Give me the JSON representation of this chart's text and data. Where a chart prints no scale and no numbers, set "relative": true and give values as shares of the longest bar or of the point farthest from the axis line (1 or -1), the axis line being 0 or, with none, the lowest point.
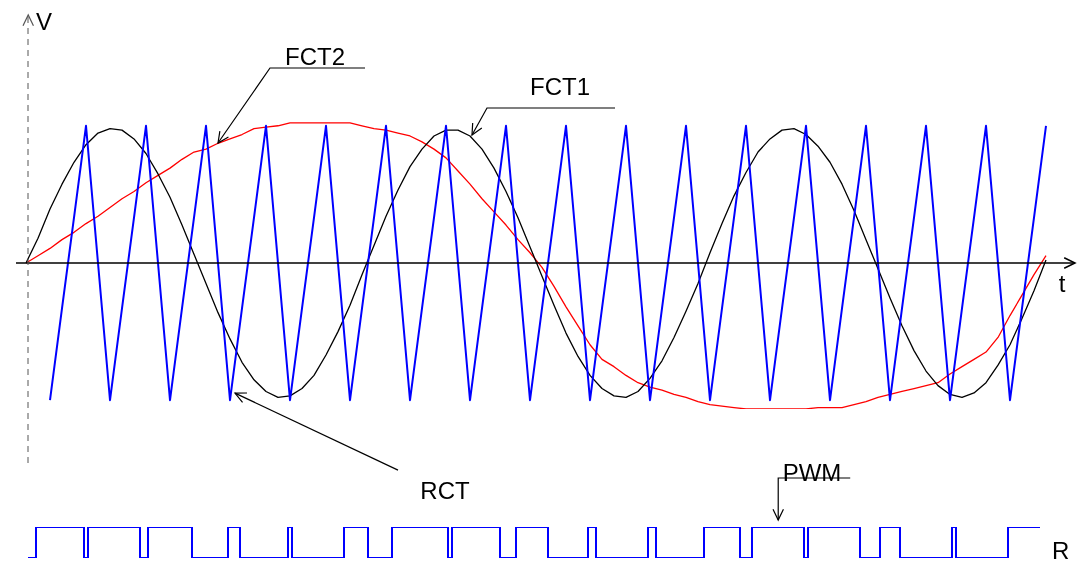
{
  "chart_data": [
    {
      "type": "line",
      "xlabel": "t",
      "ylabel": "V",
      "relative": true,
      "tick_labels": false,
      "legend": false,
      "marker": "none",
      "categories": [
        null,
        null,
        null,
        null,
        null,
        null,
        null,
        null,
        null,
        null,
        null,
        null,
        null,
        null,
        null,
        null,
        null,
        null,
        null,
        null,
        null,
        null,
        null,
        null,
        null,
        null,
        null,
        null,
        null,
        null,
        null,
        null,
        null,
        null,
        null,
        null,
        null,
        null,
        null,
        null,
        null,
        null,
        null,
        null,
        null,
        null,
        null,
        null,
        null,
        null,
        null,
        null,
        null,
        null,
        null,
        null,
        null,
        null,
        null,
        null,
        null,
        null,
        null,
        null,
        null,
        null,
        null,
        null,
        null,
        null,
        null,
        null,
        null,
        null,
        null,
        null,
        null,
        null,
        null,
        null,
        null,
        null,
        null,
        null,
        null,
        null,
        null,
        null
      ],
      "series": [
        {
          "name": "RCT",
          "color": "#0000ff",
          "values": [
            null,
            null,
            -0.94,
            -0.31,
            0.31,
            0.94,
            0,
            -0.94,
            -0.31,
            0.31,
            0.94,
            0,
            -0.94,
            -0.31,
            0.31,
            0.94,
            0,
            -0.94,
            -0.31,
            0.31,
            0.94,
            0,
            -0.94,
            -0.31,
            0.31,
            0.94,
            0,
            -0.94,
            -0.31,
            0.31,
            0.94,
            0,
            -0.94,
            -0.31,
            0.31,
            0.94,
            0,
            -0.94,
            -0.31,
            0.31,
            0.94,
            0,
            -0.94,
            -0.31,
            0.31,
            0.94,
            0,
            -0.94,
            -0.31,
            0.31,
            0.94,
            0,
            -0.94,
            -0.31,
            0.31,
            0.94,
            0,
            -0.94,
            -0.31,
            0.31,
            0.94,
            0,
            -0.94,
            -0.31,
            0.31,
            0.94,
            0,
            -0.94,
            -0.31,
            0.31,
            0.94,
            0,
            -0.94,
            -0.31,
            0.31,
            0.94,
            0,
            -0.94,
            -0.31,
            0.31,
            0.94,
            0,
            -0.94,
            -0.31,
            0.31,
            0.94,
            null,
            null
          ]
        },
        {
          "name": "FCT1",
          "color": "#000000",
          "values": [
            0,
            0.17,
            0.37,
            0.54,
            0.69,
            0.81,
            0.89,
            0.92,
            0.91,
            0.85,
            0.75,
            0.61,
            0.45,
            0.26,
            0.06,
            -0.14,
            -0.34,
            -0.52,
            -0.68,
            -0.8,
            -0.88,
            -0.92,
            -0.91,
            -0.86,
            -0.77,
            -0.63,
            -0.47,
            -0.29,
            -0.08,
            0.12,
            0.32,
            0.5,
            0.66,
            0.78,
            0.87,
            0.91,
            0.91,
            0.87,
            0.78,
            0.65,
            0.49,
            0.31,
            0.11,
            -0.09,
            -0.29,
            -0.48,
            -0.64,
            -0.77,
            -0.86,
            -0.91,
            -0.92,
            -0.88,
            -0.79,
            -0.67,
            -0.51,
            -0.33,
            -0.14,
            0.07,
            0.27,
            0.46,
            0.62,
            0.76,
            0.85,
            0.91,
            0.92,
            0.88,
            0.8,
            0.69,
            0.54,
            0.36,
            0.16,
            -0.04,
            -0.24,
            -0.43,
            -0.6,
            -0.74,
            -0.84,
            -0.9,
            -0.92,
            -0.89,
            -0.82,
            -0.7,
            -0.56,
            -0.38,
            -0.19,
            0.02,
            null,
            null
          ]
        },
        {
          "name": "FCT2",
          "color": "#ff0000",
          "values": [
            0,
            0.05,
            0.1,
            0.16,
            0.21,
            0.27,
            0.32,
            0.38,
            0.44,
            0.49,
            0.55,
            0.6,
            0.65,
            0.71,
            0.76,
            0.78,
            0.82,
            0.85,
            0.88,
            0.92,
            0.93,
            0.94,
            0.96,
            0.96,
            0.96,
            0.96,
            0.96,
            0.96,
            0.94,
            0.92,
            0.91,
            0.89,
            0.87,
            0.83,
            0.78,
            0.72,
            0.63,
            0.54,
            0.44,
            0.35,
            0.26,
            0.16,
            0.07,
            -0.03,
            -0.16,
            -0.3,
            -0.43,
            -0.56,
            -0.66,
            -0.71,
            -0.77,
            -0.82,
            -0.85,
            -0.87,
            -0.9,
            -0.92,
            -0.95,
            -0.97,
            -0.98,
            -0.99,
            -1,
            -1,
            -1,
            -1,
            -1,
            -1,
            -0.99,
            -0.99,
            -0.99,
            -0.97,
            -0.95,
            -0.92,
            -0.9,
            -0.88,
            -0.86,
            -0.84,
            -0.82,
            -0.76,
            -0.71,
            -0.66,
            -0.61,
            -0.51,
            -0.36,
            -0.22,
            -0.08,
            0.05,
            null,
            null
          ]
        }
      ]
    },
    {
      "type": "step",
      "relative": true,
      "tick_labels": false,
      "legend": false,
      "marker": "none",
      "annotations": [
        "R"
      ],
      "categories": [
        null,
        null,
        null,
        null,
        null,
        null,
        null,
        null,
        null,
        null,
        null,
        null,
        null,
        null,
        null,
        null,
        null,
        null,
        null,
        null,
        null,
        null,
        null,
        null,
        null,
        null,
        null,
        null,
        null,
        null,
        null,
        null,
        null,
        null,
        null,
        null,
        null,
        null,
        null,
        null,
        null,
        null,
        null,
        null,
        null,
        null,
        null,
        null,
        null,
        null,
        null,
        null,
        null,
        null,
        null,
        null,
        null,
        null,
        null,
        null,
        null,
        null,
        null,
        null,
        null,
        null,
        null,
        null,
        null,
        null,
        null,
        null,
        null,
        null,
        null,
        null,
        null,
        null,
        null,
        null,
        null,
        null,
        null,
        null,
        null,
        null,
        null,
        null,
        null,
        null,
        null,
        null,
        null,
        null,
        null,
        null,
        null,
        null,
        null,
        null,
        null,
        null,
        null,
        null,
        null,
        null,
        null,
        null,
        null,
        null,
        null,
        null,
        null,
        null,
        null,
        null,
        null,
        null,
        null,
        null,
        null,
        null,
        null,
        null,
        null,
        null,
        null,
        null,
        null,
        null,
        null,
        null,
        null,
        null,
        null,
        null,
        null,
        null,
        null,
        null,
        null,
        null,
        null,
        null,
        null,
        null,
        null,
        null,
        null,
        null,
        null,
        null,
        null,
        null,
        null,
        null,
        null,
        null,
        null,
        null,
        null,
        null,
        null,
        null,
        null,
        null,
        null,
        null,
        null,
        null,
        null,
        null,
        null,
        null,
        null,
        null,
        null,
        null,
        null,
        null,
        null,
        null,
        null,
        null,
        null,
        null,
        null,
        null,
        null,
        null,
        null,
        null,
        null,
        null,
        null,
        null,
        null,
        null,
        null,
        null,
        null,
        null,
        null,
        null,
        null,
        null,
        null,
        null,
        null,
        null,
        null,
        null,
        null,
        null,
        null,
        null,
        null,
        null,
        null,
        null,
        null,
        null,
        null,
        null,
        null,
        null,
        null,
        null,
        null,
        null,
        null,
        null,
        null,
        null,
        null,
        null,
        null,
        null,
        null,
        null,
        null,
        null,
        null,
        null,
        null,
        null,
        null,
        null,
        null,
        null,
        null,
        null,
        null,
        null
      ],
      "series": [
        {
          "name": "PWM",
          "color": "#0000ff",
          "values": [
            0,
            0,
            1,
            1,
            1,
            1,
            1,
            1,
            1,
            1,
            1,
            1,
            1,
            1,
            0,
            1,
            1,
            1,
            1,
            1,
            1,
            1,
            1,
            1,
            1,
            1,
            1,
            1,
            0,
            0,
            1,
            1,
            1,
            1,
            1,
            1,
            1,
            1,
            1,
            1,
            1,
            0,
            0,
            0,
            0,
            0,
            0,
            0,
            0,
            0,
            1,
            1,
            1,
            0,
            0,
            0,
            0,
            0,
            0,
            0,
            0,
            0,
            0,
            0,
            0,
            1,
            0,
            0,
            0,
            0,
            0,
            0,
            0,
            0,
            0,
            0,
            0,
            0,
            0,
            1,
            1,
            1,
            1,
            1,
            1,
            0,
            0,
            0,
            0,
            0,
            0,
            1,
            1,
            1,
            1,
            1,
            1,
            1,
            1,
            1,
            1,
            1,
            1,
            1,
            1,
            0,
            1,
            1,
            1,
            1,
            1,
            1,
            1,
            1,
            1,
            1,
            1,
            1,
            0,
            0,
            0,
            0,
            1,
            1,
            1,
            1,
            1,
            1,
            1,
            1,
            0,
            0,
            0,
            0,
            0,
            0,
            0,
            0,
            0,
            0,
            1,
            1,
            0,
            0,
            0,
            0,
            0,
            0,
            0,
            0,
            0,
            0,
            0,
            0,
            0,
            1,
            1,
            0,
            0,
            0,
            0,
            0,
            0,
            0,
            0,
            0,
            0,
            0,
            0,
            1,
            1,
            1,
            1,
            1,
            1,
            1,
            1,
            1,
            0,
            0,
            0,
            1,
            1,
            1,
            1,
            1,
            1,
            1,
            1,
            1,
            1,
            1,
            1,
            1,
            0,
            1,
            1,
            1,
            1,
            1,
            1,
            1,
            1,
            1,
            1,
            1,
            1,
            1,
            0,
            0,
            0,
            0,
            0,
            1,
            1,
            1,
            1,
            1,
            0,
            0,
            0,
            0,
            0,
            0,
            0,
            0,
            0,
            0,
            0,
            0,
            0,
            1,
            0,
            0,
            0,
            0,
            0,
            0,
            0,
            0,
            0,
            0,
            0,
            0,
            0,
            1,
            1,
            1,
            1,
            1,
            1,
            1,
            1,
            1
          ]
        }
      ]
    }
  ]
}
